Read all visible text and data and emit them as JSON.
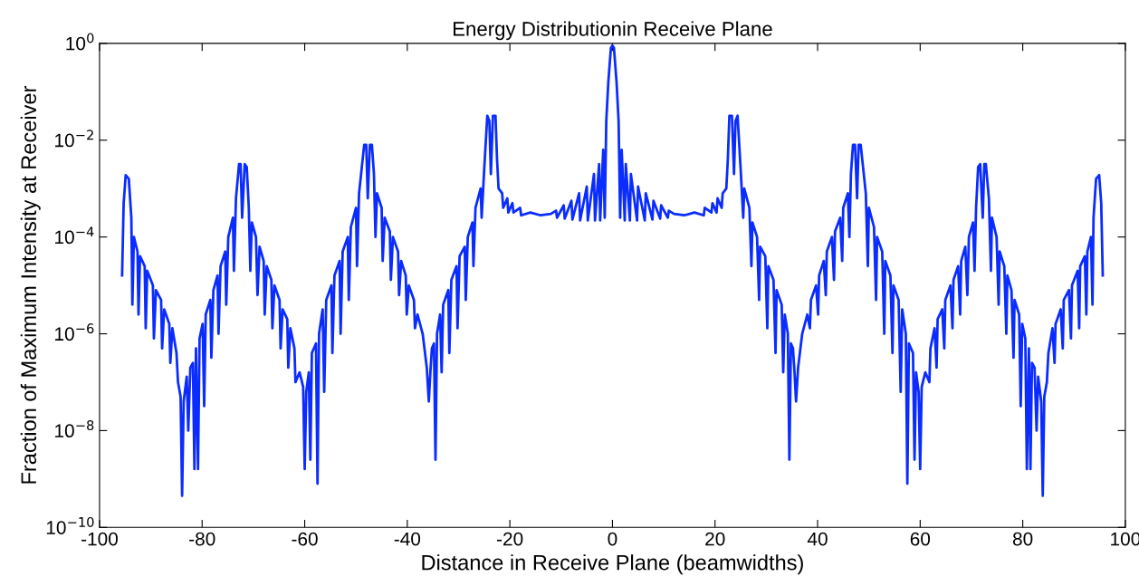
{
  "chart_data": {
    "type": "line",
    "title": "Energy Distributionin Receive Plane",
    "xlabel": "Distance in Receive Plane (beamwidths)",
    "ylabel": "Fraction of Maximum Intensity at Receiver",
    "log": "y",
    "grid": false,
    "marker": "none",
    "line_style": "solid",
    "xlim": [
      -100,
      100
    ],
    "xticks": [
      -100,
      -80,
      -60,
      -40,
      -20,
      0,
      20,
      40,
      60,
      80,
      100
    ],
    "ylim": [
      1e-10,
      1
    ],
    "yticks": [
      {
        "value": 1e-10,
        "label": "10$^{−10}$"
      },
      {
        "value": 1e-08,
        "label": "10$^{−8}$"
      },
      {
        "value": 1e-06,
        "label": "10$^{−6}$"
      },
      {
        "value": 0.0001,
        "label": "10$^{−4}$"
      },
      {
        "value": 0.01,
        "label": "10$^{−2}$"
      },
      {
        "value": 1,
        "label": "10$^{0}$"
      }
    ],
    "series": [
      {
        "color": "#0a2cff",
        "x": [
          -95.6,
          -95.3,
          -94.9,
          -94.3,
          -93.8,
          -93.6,
          -93.3,
          -92.6,
          -92.4,
          -92.1,
          -91.2,
          -91.0,
          -90.7,
          -89.6,
          -89.4,
          -89.0,
          -88.0,
          -87.8,
          -87.4,
          -86.4,
          -86.2,
          -85.8,
          -85.0,
          -84.7,
          -84.2,
          -83.9,
          -83.6,
          -83.0,
          -82.7,
          -82.3,
          -81.8,
          -81.5,
          -81.2,
          -80.8,
          -80.5,
          -79.9,
          -79.6,
          -79.3,
          -78.4,
          -78.2,
          -77.8,
          -77.0,
          -76.8,
          -76.4,
          -75.5,
          -75.3,
          -74.9,
          -74.0,
          -73.8,
          -73.4,
          -72.8,
          -72.5,
          -72.2,
          -71.7,
          -71.3,
          -70.9,
          -70.6,
          -70.3,
          -69.5,
          -69.2,
          -68.8,
          -68.0,
          -67.8,
          -67.4,
          -66.5,
          -66.3,
          -65.9,
          -64.9,
          -64.7,
          -64.3,
          -63.4,
          -63.2,
          -62.8,
          -62.0,
          -61.8,
          -61.0,
          -60.3,
          -60.0,
          -59.7,
          -59.2,
          -58.9,
          -58.6,
          -57.8,
          -57.5,
          -57.2,
          -56.5,
          -56.2,
          -55.8,
          -54.8,
          -54.6,
          -54.2,
          -53.2,
          -53.0,
          -52.6,
          -51.6,
          -51.4,
          -51.0,
          -50.0,
          -49.8,
          -49.4,
          -48.8,
          -48.4,
          -48.0,
          -47.7,
          -47.3,
          -46.9,
          -46.5,
          -46.2,
          -45.9,
          -45.0,
          -44.8,
          -44.4,
          -43.4,
          -43.2,
          -42.8,
          -41.8,
          -41.6,
          -41.2,
          -40.3,
          -40.1,
          -39.7,
          -38.7,
          -38.5,
          -38.0,
          -37.0,
          -36.2,
          -35.8,
          -35.5,
          -35.2,
          -34.8,
          -34.5,
          -34.2,
          -33.6,
          -33.3,
          -33.0,
          -32.0,
          -31.8,
          -31.4,
          -30.4,
          -30.2,
          -29.8,
          -28.8,
          -28.6,
          -28.2,
          -27.3,
          -27.1,
          -26.7,
          -25.7,
          -25.5,
          -25.0,
          -24.4,
          -24.0,
          -23.7,
          -23.3,
          -22.8,
          -22.5,
          -22.2,
          -21.5,
          -21.3,
          -20.5,
          -20.3,
          -19.5,
          -19.3,
          -18.0,
          -17.8,
          -16.0,
          -14.0,
          -12.0,
          -11.0,
          -10.8,
          -9.5,
          -9.3,
          -8.0,
          -7.8,
          -6.5,
          -6.3,
          -5.0,
          -4.8,
          -3.6,
          -3.4,
          -2.6,
          -2.4,
          -1.8,
          -1.5,
          -1.2,
          -0.8,
          -0.3,
          0,
          0.3,
          0.8,
          1.2,
          1.5,
          1.8,
          2.4,
          2.6,
          3.4,
          3.6,
          4.8,
          5.0,
          6.3,
          6.5,
          7.8,
          8.0,
          9.3,
          9.5,
          10.8,
          11.0,
          12.0,
          14.0,
          16.0,
          17.8,
          18.0,
          19.3,
          19.5,
          20.3,
          20.5,
          21.3,
          21.5,
          22.2,
          22.5,
          22.8,
          23.3,
          23.7,
          24.0,
          24.4,
          25.0,
          25.5,
          25.7,
          26.7,
          27.1,
          27.3,
          28.2,
          28.6,
          28.8,
          29.8,
          30.2,
          30.4,
          31.4,
          31.8,
          32.0,
          33.0,
          33.3,
          33.6,
          34.2,
          34.5,
          34.8,
          35.2,
          35.5,
          35.8,
          36.2,
          37.0,
          38.0,
          38.5,
          38.7,
          39.7,
          40.1,
          40.3,
          41.2,
          41.6,
          41.8,
          42.8,
          43.2,
          43.4,
          44.4,
          44.8,
          45.0,
          45.9,
          46.2,
          46.5,
          46.9,
          47.3,
          47.7,
          48.0,
          48.4,
          48.8,
          49.4,
          49.8,
          50.0,
          51.0,
          51.4,
          51.6,
          52.6,
          53.0,
          53.2,
          54.2,
          54.6,
          54.8,
          55.8,
          56.2,
          56.5,
          57.2,
          57.5,
          57.8,
          58.6,
          58.9,
          59.2,
          59.7,
          60.0,
          60.3,
          61.0,
          61.8,
          62.0,
          62.8,
          63.2,
          63.4,
          64.3,
          64.7,
          64.9,
          65.9,
          66.3,
          66.5,
          67.4,
          67.8,
          68.0,
          68.8,
          69.2,
          69.5,
          70.3,
          70.6,
          70.9,
          71.3,
          71.7,
          72.2,
          72.5,
          72.8,
          73.4,
          73.8,
          74.0,
          74.9,
          75.3,
          75.5,
          76.4,
          76.8,
          77.0,
          77.8,
          78.2,
          78.4,
          79.3,
          79.6,
          79.9,
          80.5,
          80.8,
          81.2,
          81.5,
          81.8,
          82.3,
          82.7,
          83.0,
          83.6,
          83.9,
          84.2,
          84.7,
          85.0,
          85.8,
          86.2,
          86.4,
          87.4,
          87.8,
          88.0,
          89.0,
          89.4,
          89.6,
          90.7,
          91.0,
          91.2,
          92.1,
          92.4,
          92.6,
          93.3,
          93.6,
          93.8,
          94.3,
          94.9,
          95.3,
          95.6
        ],
        "values": [
          1.6e-05,
          0.0005,
          0.0019,
          0.0016,
          0.00025,
          4e-06,
          0.0001,
          5e-05,
          2.5e-06,
          4e-05,
          2.5e-05,
          1.3e-06,
          2e-05,
          1e-05,
          8e-07,
          8e-06,
          5e-06,
          5e-07,
          3.2e-06,
          1.6e-06,
          2.5e-07,
          1.3e-06,
          4e-07,
          1e-07,
          5e-08,
          4.5e-10,
          4e-08,
          1.3e-07,
          1e-08,
          2e-07,
          2.5e-07,
          1.6e-09,
          5e-07,
          1.6e-09,
          8e-07,
          1.6e-06,
          3.2e-08,
          2.5e-06,
          5e-06,
          3.2e-07,
          8e-06,
          1.6e-05,
          1e-06,
          2.5e-05,
          5e-05,
          4e-06,
          0.0001,
          0.00025,
          2e-05,
          0.00063,
          0.0032,
          0.0032,
          0.00025,
          0.0032,
          0.0028,
          0.0004,
          2e-05,
          0.0002,
          0.0001,
          6.3e-06,
          6.3e-05,
          3.2e-05,
          2.5e-06,
          2.5e-05,
          1.3e-05,
          1.3e-06,
          1e-05,
          5e-06,
          5e-07,
          3.2e-06,
          2e-06,
          2e-07,
          1.3e-06,
          5e-07,
          1e-07,
          1.6e-07,
          8e-08,
          1.6e-09,
          6.3e-08,
          1.6e-07,
          2.5e-09,
          4e-07,
          6.3e-07,
          8e-10,
          1e-06,
          3.2e-06,
          6.3e-08,
          5e-06,
          1e-05,
          4e-07,
          1.6e-05,
          3.2e-05,
          1e-06,
          5e-05,
          0.0001,
          5e-06,
          0.00016,
          0.0004,
          2.5e-05,
          0.0008,
          0.0032,
          0.008,
          0.008,
          0.00063,
          0.008,
          0.008,
          0.002,
          0.0001,
          0.0008,
          0.0004,
          3.2e-05,
          0.00025,
          0.00013,
          1.3e-05,
          0.0001,
          5e-05,
          6.3e-06,
          3.2e-05,
          1.6e-05,
          2.5e-06,
          1e-05,
          5e-06,
          1.3e-06,
          2.5e-06,
          1e-06,
          2e-07,
          4e-08,
          1.6e-07,
          5e-07,
          6.3e-07,
          2.5e-09,
          1e-06,
          2.5e-06,
          1.6e-07,
          4e-06,
          8e-06,
          4e-07,
          1.3e-05,
          2.5e-05,
          1.3e-06,
          4e-05,
          6.3e-05,
          5e-06,
          0.0001,
          0.0002,
          2.5e-05,
          0.0004,
          0.001,
          0.00025,
          0.0025,
          0.032,
          0.025,
          0.002,
          0.032,
          0.032,
          0.004,
          0.001,
          0.0008,
          0.0004,
          0.00063,
          0.00032,
          0.0005,
          0.00032,
          0.0004,
          0.00028,
          0.00032,
          0.00028,
          0.0003,
          0.00035,
          0.00025,
          0.00045,
          0.00024,
          0.00056,
          0.00023,
          0.0008,
          0.00022,
          0.0011,
          0.00022,
          0.002,
          0.00022,
          0.0032,
          0.00022,
          0.0063,
          0.00025,
          0.025,
          0.16,
          0.8,
          0.9,
          0.8,
          0.16,
          0.025,
          0.00025,
          0.0063,
          0.00022,
          0.0032,
          0.00022,
          0.002,
          0.00022,
          0.0011,
          0.00022,
          0.0008,
          0.00023,
          0.00056,
          0.00024,
          0.00045,
          0.00025,
          0.00035,
          0.0003,
          0.00028,
          0.00032,
          0.00028,
          0.0004,
          0.00032,
          0.0005,
          0.00032,
          0.00063,
          0.0004,
          0.0008,
          0.001,
          0.004,
          0.032,
          0.032,
          0.002,
          0.025,
          0.032,
          0.0025,
          0.00025,
          0.001,
          0.0004,
          2.5e-05,
          0.0002,
          0.0001,
          5e-06,
          6.3e-05,
          4e-05,
          1.3e-06,
          2.5e-05,
          1.3e-05,
          4e-07,
          8e-06,
          4e-06,
          1.6e-07,
          2.5e-06,
          1e-06,
          2.5e-09,
          6.3e-07,
          5e-07,
          1.6e-07,
          4e-08,
          2e-07,
          1e-06,
          2.5e-06,
          1.3e-06,
          5e-06,
          1e-05,
          2.5e-06,
          1.6e-05,
          3.2e-05,
          6.3e-06,
          5e-05,
          0.0001,
          1.3e-05,
          0.00013,
          0.00025,
          3.2e-05,
          0.0004,
          0.0008,
          0.0001,
          0.002,
          0.008,
          0.008,
          0.00063,
          0.008,
          0.008,
          0.0032,
          0.0008,
          2.5e-05,
          0.0004,
          0.00016,
          5e-06,
          0.0001,
          5e-05,
          1e-06,
          3.2e-05,
          1.6e-05,
          4e-07,
          1e-05,
          5e-06,
          6.3e-08,
          3.2e-06,
          1e-06,
          8e-10,
          6.3e-07,
          4e-07,
          2.5e-09,
          1.6e-07,
          6.3e-08,
          1.6e-09,
          8e-08,
          1.6e-07,
          1e-07,
          5e-07,
          1.3e-06,
          2e-07,
          2e-06,
          3.2e-06,
          5e-07,
          5e-06,
          1e-05,
          1.3e-06,
          1.3e-05,
          2.5e-05,
          2.5e-06,
          3.2e-05,
          6.3e-05,
          6.3e-06,
          0.0001,
          0.0002,
          2e-05,
          0.0004,
          0.0028,
          0.0032,
          0.00025,
          0.0032,
          0.0032,
          0.00063,
          2e-05,
          0.00025,
          0.0001,
          4e-06,
          5e-05,
          2.5e-05,
          1e-06,
          1.6e-05,
          8e-06,
          3.2e-07,
          5e-06,
          2.5e-06,
          3.2e-08,
          1.6e-06,
          8e-07,
          1.6e-09,
          5e-07,
          1.6e-09,
          2.5e-07,
          2e-07,
          1e-08,
          1.3e-07,
          4e-08,
          4.5e-10,
          5e-08,
          1e-07,
          4e-07,
          1.3e-06,
          2.5e-07,
          1.6e-06,
          3.2e-06,
          5e-07,
          5e-06,
          8e-06,
          8e-07,
          1e-05,
          2e-05,
          1.3e-06,
          2.5e-05,
          4e-05,
          2.5e-06,
          5e-05,
          0.0001,
          4e-06,
          0.00025,
          0.0016,
          0.0019,
          0.0005,
          1.6e-05
        ]
      }
    ]
  }
}
